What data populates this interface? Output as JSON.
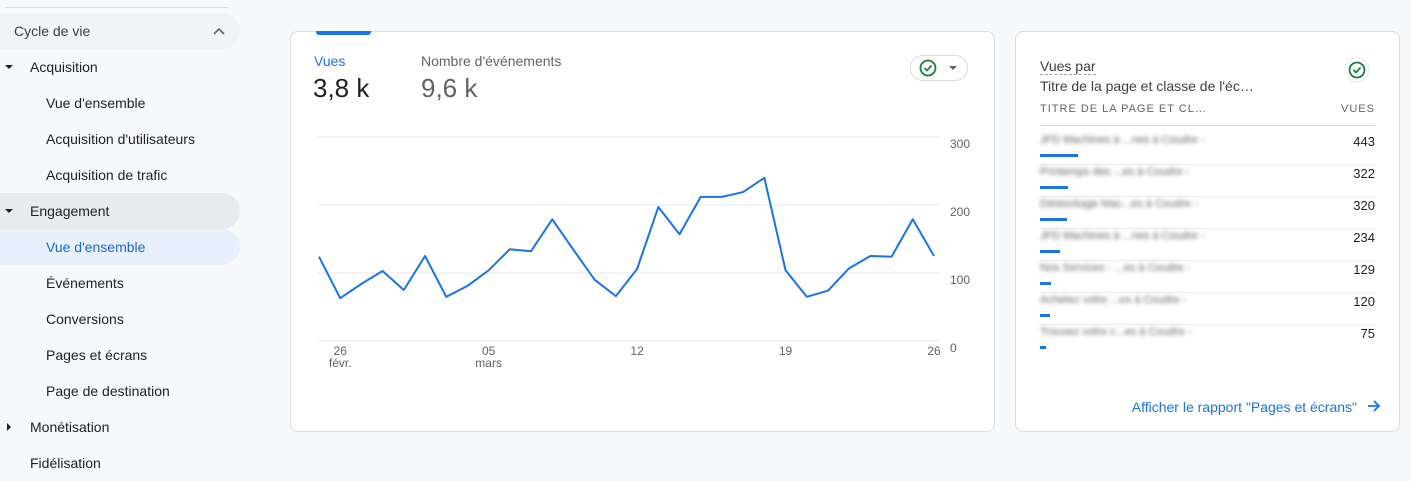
{
  "sidebar": {
    "section": "Cycle de vie",
    "groups": [
      {
        "label": "Acquisition",
        "items": [
          "Vue d'ensemble",
          "Acquisition d'utilisateurs",
          "Acquisition de trafic"
        ]
      },
      {
        "label": "Engagement",
        "items": [
          "Vue d'ensemble",
          "Événements",
          "Conversions",
          "Pages et écrans",
          "Page de destination"
        ]
      },
      {
        "label": "Monétisation",
        "items": []
      },
      {
        "label": "Fidélisation"
      }
    ]
  },
  "chart_card": {
    "tabs": [
      {
        "label": "Vues",
        "value": "3,8 k"
      },
      {
        "label": "Nombre d'événements",
        "value": "9,6 k"
      }
    ]
  },
  "chart_data": {
    "type": "line",
    "categories": [
      null,
      "26\nfévr.",
      null,
      null,
      null,
      null,
      null,
      null,
      "05\nmars",
      null,
      null,
      null,
      null,
      null,
      null,
      "12",
      null,
      null,
      null,
      null,
      null,
      null,
      "19",
      null,
      null,
      null,
      null,
      null,
      null,
      "26"
    ],
    "series": [
      {
        "name": "Vues",
        "color": "#1a73e8",
        "values": [
          124,
          63,
          84,
          103,
          75,
          125,
          65,
          81,
          104,
          135,
          132,
          179,
          134,
          90,
          66,
          106,
          197,
          157,
          212,
          212,
          219,
          240,
          104,
          65,
          74,
          107,
          125,
          124,
          179,
          125
        ]
      }
    ],
    "ylim": [
      0,
      300
    ],
    "yticks": [
      0,
      100,
      200,
      300
    ],
    "grid": true
  },
  "table_card": {
    "title": "Vues par",
    "subtitle": "Titre de la page et classe de l'éc…",
    "columns": [
      "TITRE DE LA PAGE ET CL…",
      "VUES"
    ],
    "rows": [
      {
        "name": "JFD Machines à ...nes à Coudre -",
        "value": 443
      },
      {
        "name": "Printemps des ...es à Coudre -",
        "value": 322
      },
      {
        "name": "Déstockage Mac...es à Coudre -",
        "value": 320
      },
      {
        "name": "JFD Machines à ...nes à Coudre -",
        "value": 234
      },
      {
        "name": "Nos Services - ...es à Coudre -",
        "value": 129
      },
      {
        "name": "Achetez votre ...es à Coudre -",
        "value": 120
      },
      {
        "name": "Trouvez votre c...es à Coudre -",
        "value": 75
      }
    ],
    "link": "Afficher le rapport \"Pages et écrans\""
  }
}
